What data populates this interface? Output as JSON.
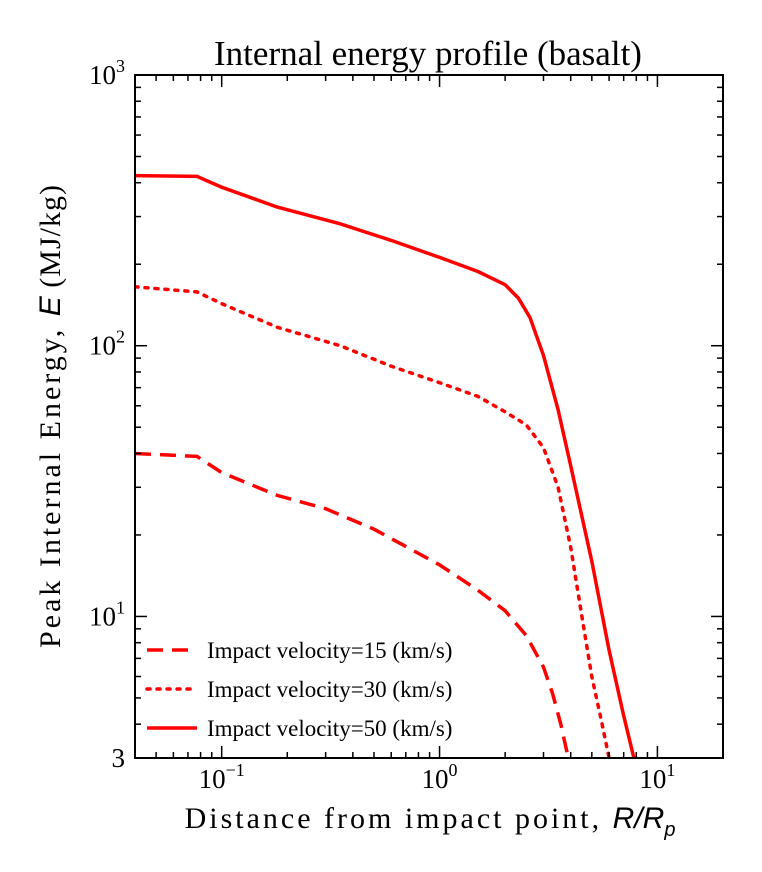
{
  "chart_data": {
    "type": "line",
    "title": "Internal energy profile (basalt)",
    "xlabel_text": "Distance from impact point, ",
    "xlabel_symbol": "R/R",
    "xlabel_subscript": "p",
    "ylabel_text": "Peak Internal Energy, ",
    "ylabel_symbol": "E",
    "ylabel_unit": " (MJ/kg)",
    "xscale": "log",
    "yscale": "log",
    "xlim": [
      0.04,
      20
    ],
    "ylim": [
      3,
      1000
    ],
    "x_ticks": [
      {
        "value": 0.1,
        "base": "10",
        "exp": "−1"
      },
      {
        "value": 1,
        "base": "10",
        "exp": "0"
      },
      {
        "value": 10,
        "base": "10",
        "exp": "1"
      }
    ],
    "y_ticks": [
      {
        "value": 3,
        "base": "3",
        "exp": ""
      },
      {
        "value": 10,
        "base": "10",
        "exp": "1"
      },
      {
        "value": 100,
        "base": "10",
        "exp": "2"
      },
      {
        "value": 1000,
        "base": "10",
        "exp": "3"
      }
    ],
    "grid": false,
    "legend_position": "bottom-left",
    "series": [
      {
        "name": "Impact velocity=15 (km/s)",
        "color": "#ff0000",
        "dash": "dashed",
        "x": [
          0.04,
          0.077,
          0.1,
          0.18,
          0.3,
          0.5,
          1.0,
          1.5,
          2.0,
          2.5,
          3.0,
          3.3,
          3.6,
          3.9
        ],
        "y": [
          40,
          39,
          34,
          28,
          25,
          21,
          15.5,
          12.5,
          10.5,
          8.5,
          6.5,
          5.2,
          4.0,
          3.0
        ]
      },
      {
        "name": "Impact velocity=30 (km/s)",
        "color": "#ff0000",
        "dash": "dotted",
        "x": [
          0.04,
          0.077,
          0.1,
          0.18,
          0.35,
          0.6,
          1.0,
          1.5,
          2.0,
          2.5,
          3.0,
          3.5,
          4.0,
          4.5,
          5.0,
          5.5,
          6.0
        ],
        "y": [
          165,
          158,
          143,
          117,
          100,
          84,
          73,
          65,
          57,
          51,
          42,
          30,
          18,
          10,
          6,
          4.2,
          3.0
        ]
      },
      {
        "name": "Impact velocity=50 (km/s)",
        "color": "#ff0000",
        "dash": "solid",
        "x": [
          0.04,
          0.077,
          0.1,
          0.18,
          0.35,
          0.6,
          1.0,
          1.5,
          2.0,
          2.3,
          2.6,
          3.0,
          3.5,
          4.0,
          5.0,
          6.0,
          7.0,
          7.8
        ],
        "y": [
          425,
          422,
          385,
          325,
          282,
          245,
          212,
          188,
          168,
          150,
          127,
          92,
          58,
          36,
          16,
          7.5,
          4.3,
          3.0
        ]
      }
    ]
  }
}
